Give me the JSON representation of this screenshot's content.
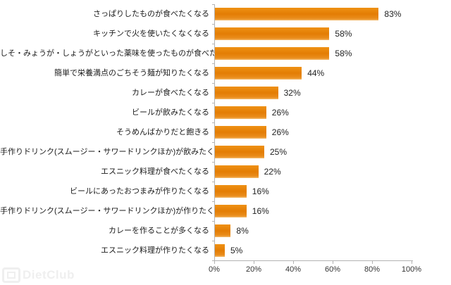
{
  "watermark": {
    "text": "DietClub"
  },
  "chart_data": {
    "type": "bar",
    "orientation": "horizontal",
    "title": "",
    "xlabel": "",
    "ylabel": "",
    "xlim": [
      0,
      100
    ],
    "grid": false,
    "legend": "none",
    "bar_color": "#E8820C",
    "value_suffix": "%",
    "categories": [
      "さっぱりしたものが食べたくなる",
      "キッチンで火を使いたくなくなる",
      "しそ・みょうが・しょうがといった薬味を使ったものが食べたくなる",
      "簡単で栄養満点のごちそう麺が知りたくなる",
      "カレーが食べたくなる",
      "ビールが飲みたくなる",
      "そうめんばかりだと飽きる",
      "手作りドリンク(スムージー・サワードリンクほか)が飲みたくなる",
      "エスニック料理が食べたくなる",
      "ビールにあったおつまみが作りたくなる",
      "手作りドリンク(スムージー・サワードリンクほか)が作りたくなる",
      "カレーを作ることが多くなる",
      "エスニック料理が作りたくなる"
    ],
    "values": [
      83,
      58,
      58,
      44,
      32,
      26,
      26,
      25,
      22,
      16,
      16,
      8,
      5
    ],
    "value_labels": [
      "83%",
      "58%",
      "58%",
      "44%",
      "32%",
      "26%",
      "26%",
      "25%",
      "22%",
      "16%",
      "16%",
      "8%",
      "5%"
    ],
    "x_ticks": [
      0,
      20,
      40,
      60,
      80,
      100
    ],
    "x_tick_labels": [
      "0%",
      "20%",
      "40%",
      "60%",
      "80%",
      "100%"
    ]
  }
}
